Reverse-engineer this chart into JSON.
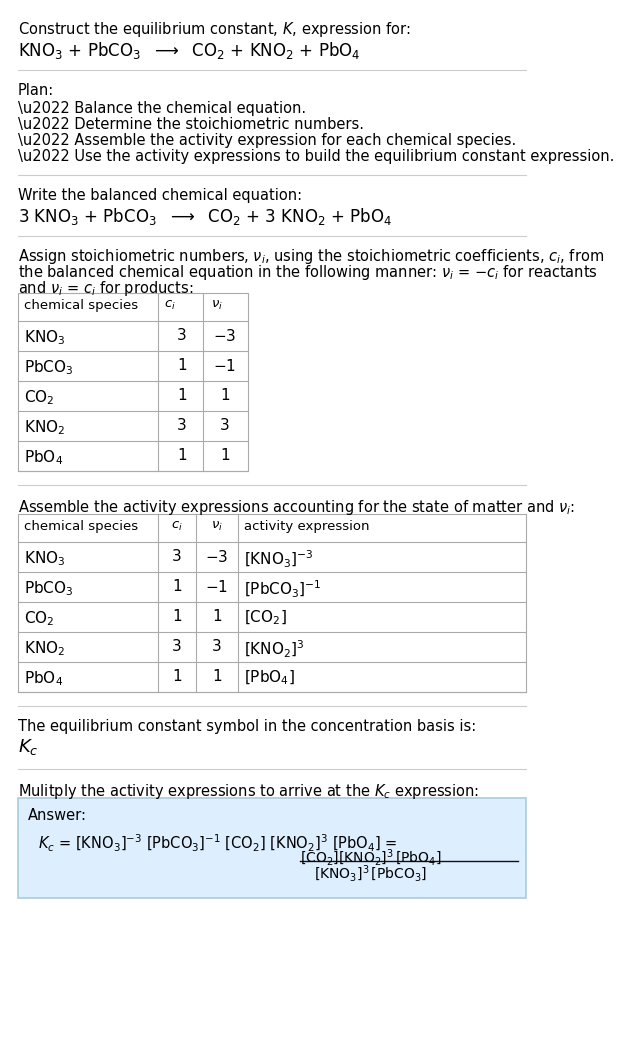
{
  "title_text": "Construct the equilibrium constant, $\\mathit{K}$, expression for:",
  "unbalanced_eq": "$\\mathregular{KNO_3}$ + $\\mathregular{PbCO_3}$  $\\longrightarrow$  $\\mathregular{CO_2}$ + $\\mathregular{KNO_2}$ + $\\mathregular{PbO_4}$",
  "plan_header": "Plan:",
  "plan_items": [
    "\\u2022 Balance the chemical equation.",
    "\\u2022 Determine the stoichiometric numbers.",
    "\\u2022 Assemble the activity expression for each chemical species.",
    "\\u2022 Use the activity expressions to build the equilibrium constant expression."
  ],
  "balanced_header": "Write the balanced chemical equation:",
  "balanced_eq": "3 $\\mathregular{KNO_3}$ + $\\mathregular{PbCO_3}$  $\\longrightarrow$  $\\mathregular{CO_2}$ + 3 $\\mathregular{KNO_2}$ + $\\mathregular{PbO_4}$",
  "stoich_line1": "Assign stoichiometric numbers, $\\mathit{\\nu}_i$, using the stoichiometric coefficients, $\\mathit{c}_i$, from",
  "stoich_line2": "the balanced chemical equation in the following manner: $\\mathit{\\nu}_i$ = $-\\mathit{c}_i$ for reactants",
  "stoich_line3": "and $\\mathit{\\nu}_i$ = $\\mathit{c}_i$ for products:",
  "table1_species": [
    "$\\mathregular{KNO_3}$",
    "$\\mathregular{PbCO_3}$",
    "$\\mathregular{CO_2}$",
    "$\\mathregular{KNO_2}$",
    "$\\mathregular{PbO_4}$"
  ],
  "table1_ci": [
    "3",
    "1",
    "1",
    "3",
    "1"
  ],
  "table1_nu": [
    "$-$3",
    "$-$1",
    "1",
    "3",
    "1"
  ],
  "activity_header": "Assemble the activity expressions accounting for the state of matter and $\\mathit{\\nu}_i$:",
  "table2_species": [
    "$\\mathregular{KNO_3}$",
    "$\\mathregular{PbCO_3}$",
    "$\\mathregular{CO_2}$",
    "$\\mathregular{KNO_2}$",
    "$\\mathregular{PbO_4}$"
  ],
  "table2_ci": [
    "3",
    "1",
    "1",
    "3",
    "1"
  ],
  "table2_nu": [
    "$-$3",
    "$-$1",
    "1",
    "3",
    "1"
  ],
  "table2_act": [
    "$[\\mathregular{KNO_3}]^{-3}$",
    "$[\\mathregular{PbCO_3}]^{-1}$",
    "$[\\mathregular{CO_2}]$",
    "$[\\mathregular{KNO_2}]^3$",
    "$[\\mathregular{PbO_4}]$"
  ],
  "kc_header": "The equilibrium constant symbol in the concentration basis is:",
  "kc_symbol": "$\\mathit{K}_c$",
  "multiply_header": "Mulitply the activity expressions to arrive at the $\\mathit{K}_c$ expression:",
  "answer_lhs": "$\\mathit{K}_c$ = $[\\mathregular{KNO_3}]^{-3}$ $[\\mathregular{PbCO_3}]^{-1}$ $[\\mathregular{CO_2}]$ $[\\mathregular{KNO_2}]^3$ $[\\mathregular{PbO_4}]$ =",
  "answer_num": "$[\\mathregular{CO_2}][\\mathregular{KNO_2}]^3\\,[\\mathregular{PbO_4}]$",
  "answer_den": "$[\\mathregular{KNO_3}]^3\\,[\\mathregular{PbCO_3}]$",
  "bg_color": "#ffffff",
  "sep_color": "#cccccc",
  "table_color": "#aaaaaa",
  "answer_bg": "#ddeeff",
  "answer_edge": "#aaccdd"
}
